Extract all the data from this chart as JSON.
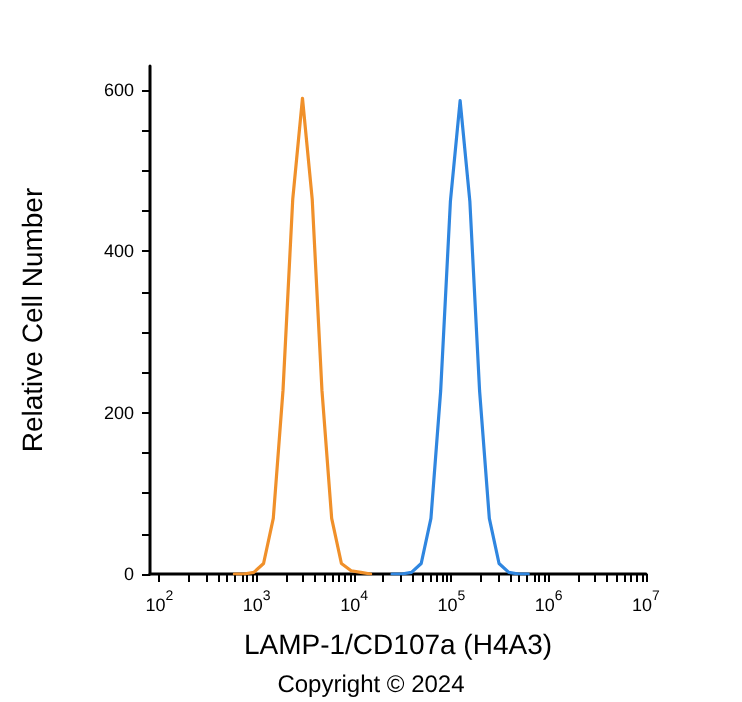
{
  "chart_data": {
    "type": "line",
    "xlabel": "LAMP-1/CD107a (H4A3)",
    "ylabel": "Relative Cell Number",
    "annotations": [
      "Copyright © 2024"
    ],
    "log": "x",
    "grid": false,
    "marker": "none",
    "line_style": "solid",
    "xlim": [
      80,
      10000000
    ],
    "xticks": [
      {
        "value": 100,
        "label": "10$^{2}$"
      },
      {
        "value": 200,
        "label": null
      },
      {
        "value": 300,
        "label": null
      },
      {
        "value": 400,
        "label": null
      },
      {
        "value": 500,
        "label": null
      },
      {
        "value": 600,
        "label": null
      },
      {
        "value": 700,
        "label": null
      },
      {
        "value": 800,
        "label": null
      },
      {
        "value": 900,
        "label": null
      },
      {
        "value": 1000,
        "label": "10$^{3}$"
      },
      {
        "value": 2000,
        "label": null
      },
      {
        "value": 3000,
        "label": null
      },
      {
        "value": 4000,
        "label": null
      },
      {
        "value": 5000,
        "label": null
      },
      {
        "value": 6000,
        "label": null
      },
      {
        "value": 7000,
        "label": null
      },
      {
        "value": 8000,
        "label": null
      },
      {
        "value": 9000,
        "label": null
      },
      {
        "value": 10000,
        "label": "10$^{4}$"
      },
      {
        "value": 20000,
        "label": null
      },
      {
        "value": 30000,
        "label": null
      },
      {
        "value": 40000,
        "label": null
      },
      {
        "value": 50000,
        "label": null
      },
      {
        "value": 60000,
        "label": null
      },
      {
        "value": 70000,
        "label": null
      },
      {
        "value": 80000,
        "label": null
      },
      {
        "value": 90000,
        "label": null
      },
      {
        "value": 100000,
        "label": "10$^{5}$"
      },
      {
        "value": 200000,
        "label": null
      },
      {
        "value": 300000,
        "label": null
      },
      {
        "value": 400000,
        "label": null
      },
      {
        "value": 500000,
        "label": null
      },
      {
        "value": 600000,
        "label": null
      },
      {
        "value": 700000,
        "label": null
      },
      {
        "value": 800000,
        "label": null
      },
      {
        "value": 900000,
        "label": null
      },
      {
        "value": 1000000,
        "label": "10$^{6}$"
      },
      {
        "value": 2000000,
        "label": null
      },
      {
        "value": 3000000,
        "label": null
      },
      {
        "value": 4000000,
        "label": null
      },
      {
        "value": 5000000,
        "label": null
      },
      {
        "value": 6000000,
        "label": null
      },
      {
        "value": 7000000,
        "label": null
      },
      {
        "value": 8000000,
        "label": null
      },
      {
        "value": 9000000,
        "label": null
      },
      {
        "value": 10000000,
        "label": "10$^{7}$"
      }
    ],
    "ylim": [
      0,
      630
    ],
    "yticks": [
      0,
      {
        "value": 50,
        "label": null
      },
      {
        "value": 100,
        "label": null
      },
      {
        "value": 150,
        "label": null
      },
      200,
      {
        "value": 250,
        "label": null
      },
      {
        "value": 300,
        "label": null
      },
      {
        "value": 350,
        "label": null
      },
      400,
      {
        "value": 450,
        "label": null
      },
      {
        "value": 500,
        "label": null
      },
      {
        "value": 550,
        "label": null
      },
      600
    ],
    "series": [
      {
        "color": "#f0902a",
        "x": [
          589,
          741,
          933,
          1175,
          1479,
          1862,
          2344,
          2951,
          3715,
          4677,
          5888,
          7413,
          9333,
          11749,
          14791
        ],
        "values": [
          0,
          0,
          2,
          13,
          69,
          228,
          465,
          590,
          465,
          228,
          69,
          13,
          4,
          2,
          0
        ]
      },
      {
        "color": "#2f86e0",
        "x": [
          24547,
          30903,
          38905,
          48978,
          61660,
          77625,
          97724,
          123027,
          154882,
          194984,
          245471,
          309030,
          389045,
          489779,
          616595
        ],
        "values": [
          0,
          0,
          2,
          13,
          69,
          227,
          462,
          587,
          462,
          227,
          69,
          13,
          2,
          0,
          0
        ]
      }
    ]
  }
}
